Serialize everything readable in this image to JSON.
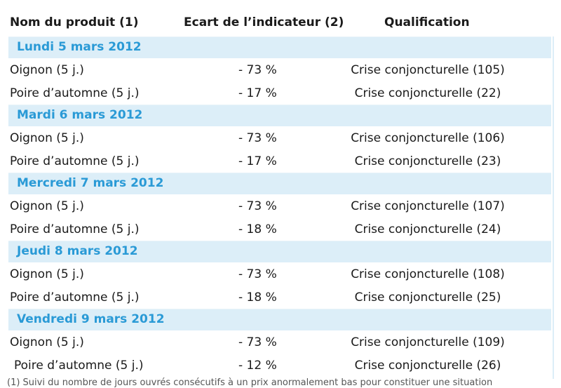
{
  "header": {
    "col1": "Nom du produit (1)",
    "col2": "Ecart de l’indicateur (2)",
    "col3": "Qualification"
  },
  "groups": [
    {
      "date": "Lundi 5 mars 2012",
      "rows": [
        {
          "product": "Oignon (5 j.)",
          "ecart": "- 73 %",
          "qualification": "Crise conjoncturelle (105)"
        },
        {
          "product": "Poire d’automne (5 j.)",
          "ecart": "- 17 %",
          "qualification": "Crise conjoncturelle (22)"
        }
      ]
    },
    {
      "date": "Mardi 6 mars 2012",
      "rows": [
        {
          "product": "Oignon (5 j.)",
          "ecart": "- 73 %",
          "qualification": "Crise conjoncturelle (106)"
        },
        {
          "product": "Poire d’automne (5 j.)",
          "ecart": "- 17 %",
          "qualification": "Crise conjoncturelle (23)"
        }
      ]
    },
    {
      "date": "Mercredi 7 mars 2012",
      "rows": [
        {
          "product": "Oignon (5 j.)",
          "ecart": "- 73 %",
          "qualification": "Crise conjoncturelle (107)"
        },
        {
          "product": "Poire d’automne (5 j.)",
          "ecart": "- 18 %",
          "qualification": "Crise conjoncturelle (24)"
        }
      ]
    },
    {
      "date": "Jeudi 8 mars 2012",
      "rows": [
        {
          "product": "Oignon (5 j.)",
          "ecart": "- 73 %",
          "qualification": "Crise conjoncturelle (108)"
        },
        {
          "product": "Poire d’automne (5 j.)",
          "ecart": "- 18 %",
          "qualification": "Crise conjoncturelle (25)"
        }
      ]
    },
    {
      "date": "Vendredi 9 mars 2012",
      "rows": [
        {
          "product": "Oignon (5 j.)",
          "ecart": "- 73 %",
          "qualification": "Crise conjoncturelle (109)"
        },
        {
          "product": "Poire d’automne (5 j.)",
          "ecart": "- 12 %",
          "qualification": "Crise conjoncturelle (26)"
        }
      ]
    }
  ],
  "footnote": "(1) Suivi du nombre de jours ouvrés consécutifs à un prix anormalement bas pour constituer une situation"
}
